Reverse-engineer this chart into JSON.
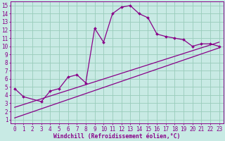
{
  "bg_color": "#c8eae4",
  "plot_bg_color": "#c8eae4",
  "line_color": "#880088",
  "grid_color": "#99ccbb",
  "xlabel": "Windchill (Refroidissement éolien,°C)",
  "xlim": [
    -0.5,
    23.5
  ],
  "ylim": [
    0.5,
    15.5
  ],
  "xticks": [
    0,
    1,
    2,
    3,
    4,
    5,
    6,
    7,
    8,
    9,
    10,
    11,
    12,
    13,
    14,
    15,
    16,
    17,
    18,
    19,
    20,
    21,
    22,
    23
  ],
  "yticks": [
    1,
    2,
    3,
    4,
    5,
    6,
    7,
    8,
    9,
    10,
    11,
    12,
    13,
    14,
    15
  ],
  "curve1_x": [
    0,
    1,
    3,
    4,
    5,
    6,
    7,
    8,
    9,
    10,
    11,
    12,
    13,
    14,
    15,
    16,
    17,
    18,
    19,
    20,
    21,
    22,
    23
  ],
  "curve1_y": [
    4.8,
    3.8,
    3.2,
    4.5,
    4.8,
    6.2,
    6.5,
    5.5,
    12.2,
    10.5,
    14.0,
    14.8,
    15.0,
    14.0,
    13.5,
    11.5,
    11.2,
    11.0,
    10.8,
    10.0,
    10.3,
    10.3,
    10.0
  ],
  "curve2_x": [
    0,
    23
  ],
  "curve2_y": [
    1.2,
    9.8
  ],
  "curve3_x": [
    0,
    23
  ],
  "curve3_y": [
    2.5,
    10.5
  ],
  "tick_fontsize": 5.5,
  "xlabel_fontsize": 5.8
}
